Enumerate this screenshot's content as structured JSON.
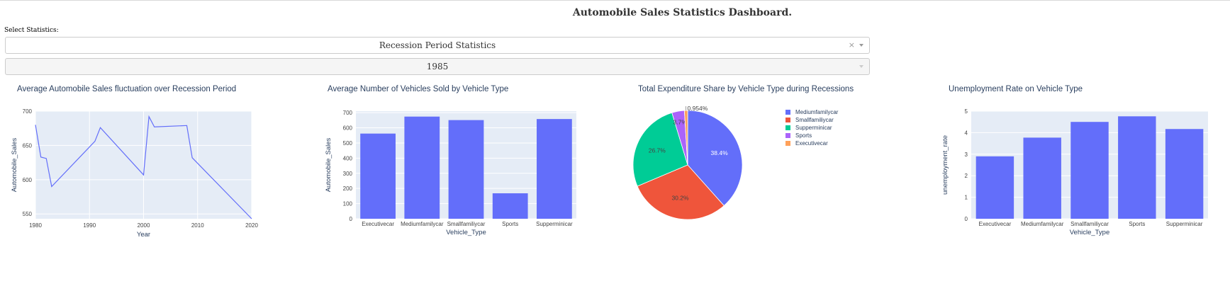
{
  "header": {
    "title": "Automobile Sales Statistics Dashboard."
  },
  "controls": {
    "select_label": "Select Statistics:",
    "statistics_value": "Recession Period Statistics",
    "clear_symbol": "×",
    "year_value": "1985"
  },
  "colors": {
    "accent": "#636efa",
    "plot_bg": "#e5ecf6",
    "grid": "#ffffff"
  },
  "chart_data": [
    {
      "type": "line",
      "title": "Average Automobile Sales fluctuation over Recession Period",
      "xlabel": "Year",
      "ylabel": "Automobile_Sales",
      "x": [
        1980,
        1981,
        1982,
        1983,
        1991,
        1992,
        2000,
        2001,
        2002,
        2008,
        2009,
        2020
      ],
      "values": [
        680,
        633,
        631,
        590,
        656,
        676,
        607,
        692,
        677,
        679,
        632,
        543
      ],
      "xlim": [
        1980,
        2020
      ],
      "ylim": [
        543,
        700
      ],
      "xticks": [
        1980,
        1990,
        2000,
        2010,
        2020
      ],
      "yticks": [
        550,
        600,
        650,
        700
      ],
      "color": "#636efa",
      "grid": true
    },
    {
      "type": "bar",
      "title": "Average Number of Vehicles Sold by Vehicle Type",
      "xlabel": "Vehicle_Type",
      "ylabel": "Automobile_Sales",
      "categories": [
        "Executivecar",
        "Mediumfamilycar",
        "Smallfamiliycar",
        "Sports",
        "Supperminicar"
      ],
      "values": [
        562,
        674,
        651,
        168,
        658
      ],
      "ylim": [
        0,
        710
      ],
      "yticks": [
        0,
        100,
        200,
        300,
        400,
        500,
        600,
        700
      ],
      "color": "#636efa",
      "grid": true
    },
    {
      "type": "pie",
      "title": "Total Expenditure Share by Vehicle Type during Recessions",
      "labels": [
        "Mediumfamilycar",
        "Smallfamiliycar",
        "Supperminicar",
        "Sports",
        "Executivecar"
      ],
      "values": [
        38.4,
        30.2,
        26.7,
        3.7,
        0.954
      ],
      "value_labels": [
        "38.4%",
        "30.2%",
        "26.7%",
        "3.7%",
        "0.954%"
      ],
      "colors": [
        "#636efa",
        "#ef553b",
        "#00cc96",
        "#ab63fa",
        "#ffa15a"
      ],
      "legend": "right"
    },
    {
      "type": "bar",
      "title": "Unemployment Rate on Vehicle Type",
      "xlabel": "Vehicle_Type",
      "ylabel": "unemployment_rate",
      "categories": [
        "Executivecar",
        "Mediumfamilycar",
        "Smallfamiliycar",
        "Sports",
        "Supperminicar"
      ],
      "values": [
        2.9,
        3.77,
        4.5,
        4.76,
        4.17
      ],
      "ylim": [
        0,
        5
      ],
      "yticks": [
        0,
        1,
        2,
        3,
        4,
        5
      ],
      "color": "#636efa",
      "grid": true
    }
  ]
}
